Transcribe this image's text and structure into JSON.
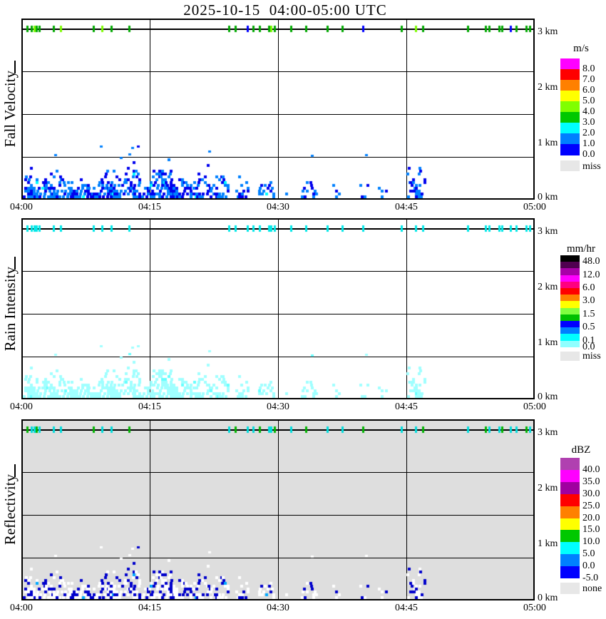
{
  "title": "2025-10-15  04:00-05:00 UTC",
  "chart_data": {
    "type": "heatmap",
    "title": "2025-10-15  04:00-05:00 UTC",
    "x_axis": {
      "ticks": [
        "04:00",
        "04:15",
        "04:30",
        "04:45",
        "05:00"
      ],
      "range_minutes": [
        0,
        60
      ],
      "grid": "vertical lines every 15 minutes"
    },
    "y_axis": {
      "tick_labels": [
        "3 km",
        "2 km",
        "1 km",
        "0 km"
      ],
      "range_km": [
        0,
        3
      ],
      "grid": "3 horizontal lines per panel plus detection line near 3 km"
    },
    "echo_clusters_format": [
      "start_minute",
      "end_minute",
      "top_height_km",
      "density"
    ],
    "echo_clusters": [
      [
        0,
        7.5,
        0.55,
        0.8
      ],
      [
        7.5,
        13,
        0.62,
        0.7
      ],
      [
        13,
        20.5,
        0.72,
        0.75
      ],
      [
        20.5,
        24,
        0.62,
        0.6
      ],
      [
        25.3,
        26.6,
        0.5,
        0.45
      ],
      [
        27.8,
        29.6,
        0.52,
        0.5
      ],
      [
        30.8,
        31.8,
        0.42,
        0.4
      ],
      [
        32.8,
        34.6,
        0.52,
        0.5
      ],
      [
        36.4,
        37.6,
        0.46,
        0.4
      ],
      [
        39.4,
        40.6,
        0.5,
        0.4
      ],
      [
        41.9,
        42.8,
        0.36,
        0.35
      ],
      [
        45.4,
        47.2,
        0.58,
        0.5
      ]
    ],
    "detection_dot_minutes": [
      0.5,
      1.0,
      1.3,
      1.6,
      1.9,
      3.6,
      4.4,
      8.3,
      9.3,
      10.4,
      12.5,
      24.2,
      25.0,
      26.4,
      27.1,
      27.8,
      28.9,
      29.2,
      29.6,
      31.5,
      33.3,
      35.8,
      37.5,
      40.0,
      44.5,
      46.2,
      47.0,
      52.3,
      54.4,
      54.8,
      56.0,
      56.3,
      57.3,
      58.0,
      59.2,
      59.6
    ],
    "panels": [
      {
        "axis_title": "Fall Velocity",
        "unit": "m/s",
        "plot_bg": "#FFFFFF",
        "legend": {
          "title": "m/s",
          "bands": [
            {
              "color": "#FF00FF",
              "label": "8.0"
            },
            {
              "color": "#FF0000",
              "label": "7.0"
            },
            {
              "color": "#FF8000",
              "label": "6.0"
            },
            {
              "color": "#FFFF00",
              "label": "5.0"
            },
            {
              "color": "#80FF00",
              "label": "4.0"
            },
            {
              "color": "#00C800",
              "label": "3.0"
            },
            {
              "color": "#00FFFF",
              "label": "2.0"
            },
            {
              "color": "#0080FF",
              "label": "1.0"
            },
            {
              "color": "#0000FF",
              "label": "0.0"
            }
          ],
          "miss": {
            "color": "#E7E7E7",
            "label": "miss"
          }
        },
        "echo_levels": [
          {
            "lt": 0.45,
            "color": "#0000EE"
          },
          {
            "lt": 0.93,
            "color": "#0080FF"
          },
          {
            "lt": 0.97,
            "color": "#00FFFF"
          },
          {
            "lt": 1.01,
            "color": "#0080FF"
          }
        ],
        "echo_rare_bottom": "#FF00FF",
        "dot_palette": [
          "#00A800",
          "#7CFC00",
          "#0000FF"
        ],
        "dot_pattern": [
          0,
          0,
          1,
          0,
          0,
          0,
          1,
          0,
          1,
          0,
          0,
          0,
          0,
          2,
          0,
          0,
          0,
          1,
          0,
          0,
          0,
          0,
          0,
          2,
          0,
          1,
          0,
          0,
          0,
          0,
          0,
          0,
          2,
          0,
          0,
          0
        ]
      },
      {
        "axis_title": "Rain Intensity",
        "unit": "mm/hr",
        "plot_bg": "#FFFFFF",
        "legend": {
          "title": "mm/hr",
          "bands": [
            {
              "color": "#000000",
              "label": "48.0"
            },
            {
              "color": "#500050",
              "label": null
            },
            {
              "color": "#A800A8",
              "label": "12.0"
            },
            {
              "color": "#FF00FF",
              "label": null
            },
            {
              "color": "#FF0080",
              "label": "6.0"
            },
            {
              "color": "#FF0000",
              "label": null
            },
            {
              "color": "#FF8000",
              "label": "3.0"
            },
            {
              "color": "#FFFF00",
              "label": null
            },
            {
              "color": "#80FF40",
              "label": "1.5"
            },
            {
              "color": "#00C000",
              "label": null
            },
            {
              "color": "#0000FF",
              "label": "0.5"
            },
            {
              "color": "#0080FF",
              "label": null
            },
            {
              "color": "#00FFFF",
              "label": "0.1"
            },
            {
              "color": "#90FFFF",
              "label": "0.0"
            }
          ],
          "miss": {
            "color": "#E7E7E7",
            "label": "miss"
          }
        },
        "echo_levels": [
          {
            "lt": 0.97,
            "color": "#A0FFFF"
          },
          {
            "lt": 1.01,
            "color": "#66FFFF"
          }
        ],
        "echo_rare_bottom": null,
        "dot_palette": [
          "#00E8E8"
        ],
        "dot_pattern": [
          0,
          0,
          0,
          0,
          0,
          0,
          0,
          0,
          0,
          0,
          0,
          0,
          0,
          0,
          0,
          0,
          0,
          0,
          0,
          0,
          0,
          0,
          0,
          0,
          0,
          0,
          0,
          0,
          0,
          0,
          0,
          0,
          0,
          0,
          0,
          0
        ]
      },
      {
        "axis_title": "Reflectivity",
        "unit": "dBZ",
        "plot_bg": "#DEDEDE",
        "legend": {
          "title": "dBZ",
          "bands": [
            {
              "color": "#B040B0",
              "label": "40.0"
            },
            {
              "color": "#FF00FF",
              "label": "35.0"
            },
            {
              "color": "#A000A0",
              "label": "30.0"
            },
            {
              "color": "#FF0000",
              "label": "25.0"
            },
            {
              "color": "#FF8000",
              "label": "20.0"
            },
            {
              "color": "#FFFF00",
              "label": "15.0"
            },
            {
              "color": "#00C800",
              "label": "10.0"
            },
            {
              "color": "#00FFFF",
              "label": "5.0"
            },
            {
              "color": "#0080FF",
              "label": "0.0"
            },
            {
              "color": "#0000FF",
              "label": "-5.0"
            }
          ],
          "miss": {
            "color": "#E7E7E7",
            "label": "none"
          }
        },
        "echo_levels": [
          {
            "lt": 0.38,
            "color": "#0000CC"
          },
          {
            "lt": 0.94,
            "color": "#FFFFFF"
          },
          {
            "lt": 0.96,
            "color": "#00AAFF"
          },
          {
            "lt": 1.01,
            "color": "#FFFFFF"
          }
        ],
        "echo_rare_bottom": null,
        "dot_palette": [
          "#00DDDD",
          "#00B400"
        ],
        "dot_pattern": [
          1,
          0,
          0,
          1,
          0,
          0,
          0,
          1,
          0,
          0,
          1,
          0,
          1,
          0,
          0,
          1,
          0,
          0,
          1,
          0,
          1,
          0,
          0,
          1,
          0,
          0,
          1,
          0,
          1,
          0,
          0,
          1,
          0,
          0,
          1,
          0
        ]
      }
    ]
  }
}
